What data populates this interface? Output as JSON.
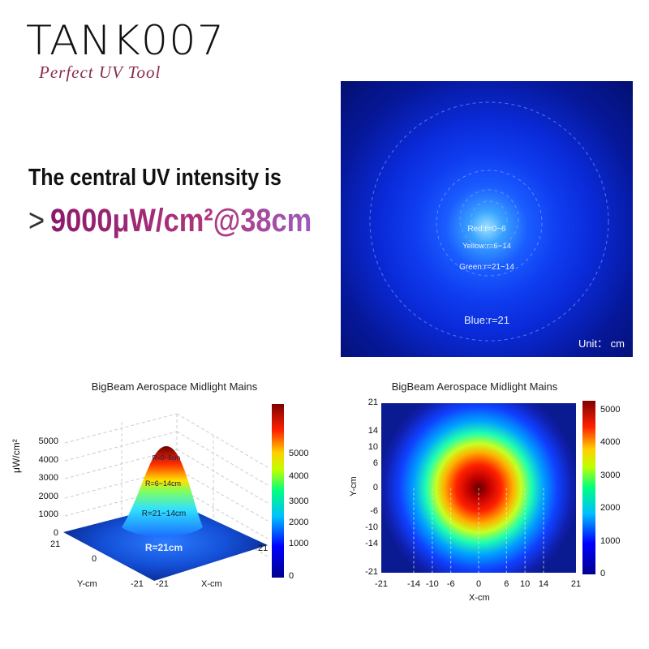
{
  "brand": {
    "logo": "TANK007",
    "tagline": "Perfect UV Tool"
  },
  "headline": {
    "line1": "The central UV intensity is",
    "prefix": ">",
    "value": "9000μW/cm²@38cm"
  },
  "beam_image": {
    "labels": [
      "Red:r=0~6",
      "Yellow:r=6~14",
      "Green:r=21~14",
      "Blue:r=21"
    ],
    "unit": "Unit： cm"
  },
  "chart_data": [
    {
      "type": "surface3d",
      "title": "BigBeam Aerospace Midlight Mains",
      "zlabel": "μW/cm²",
      "xlabel": "X-cm",
      "ylabel": "Y-cm",
      "z_ticks": [
        "5000",
        "4000",
        "3000",
        "2000",
        "1000",
        "0"
      ],
      "x_ticks": [
        "-21",
        "21"
      ],
      "y_ticks": [
        "21",
        "0",
        "-21"
      ],
      "zone_labels": [
        "R=0~6cm",
        "R=6~14cm",
        "R=21~14cm",
        "R=21cm"
      ],
      "colorbar_ticks": [
        "5000",
        "4000",
        "3000",
        "2000",
        "1000",
        "0"
      ],
      "peak": 5300
    },
    {
      "type": "heatmap",
      "title": "BigBeam Aerospace Midlight Mains",
      "xlabel": "X-cm",
      "ylabel": "Y-cm",
      "x_ticks": [
        "-21",
        "-14",
        "-10",
        "-6",
        "0",
        "6",
        "10",
        "14",
        "21"
      ],
      "y_ticks": [
        "21",
        "14",
        "10",
        "6",
        "0",
        "-6",
        "-10",
        "-14",
        "-21"
      ],
      "xlim": [
        -21,
        21
      ],
      "ylim": [
        -21,
        21
      ],
      "colorbar_ticks": [
        "5000",
        "4000",
        "3000",
        "2000",
        "1000",
        "0"
      ],
      "clim": [
        0,
        5300
      ],
      "dashed_x": [
        -14,
        -10,
        -6,
        0,
        6,
        10,
        14
      ]
    }
  ]
}
